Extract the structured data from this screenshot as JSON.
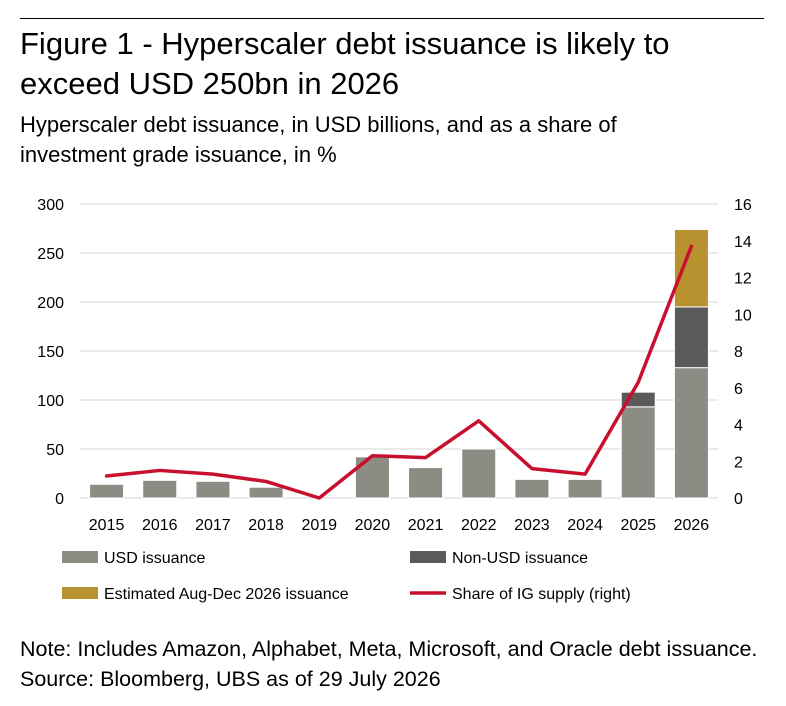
{
  "title": "Figure 1 - Hyperscaler debt issuance is likely to exceed USD 250bn in 2026",
  "subtitle": "Hyperscaler debt issuance, in USD billions, and as a share of investment grade issuance, in %",
  "note": "Note: Includes Amazon, Alphabet, Meta, Microsoft, and Oracle debt issuance. Source: Bloomberg, UBS as of 29 July 2026",
  "chart_data": {
    "type": "bar",
    "stacked": true,
    "categories": [
      "2015",
      "2016",
      "2017",
      "2018",
      "2019",
      "2020",
      "2021",
      "2022",
      "2023",
      "2024",
      "2025",
      "2026"
    ],
    "series": [
      {
        "name": "USD issuance",
        "kind": "bar",
        "axis": "left",
        "color": "#8c8c84",
        "values": [
          14,
          18,
          17,
          11,
          0,
          42,
          31,
          50,
          19,
          19,
          93,
          133
        ]
      },
      {
        "name": "Non-USD issuance",
        "kind": "bar",
        "axis": "left",
        "color": "#5a5a5a",
        "values": [
          0,
          0,
          0,
          0,
          0,
          0,
          0,
          0,
          0,
          0,
          15,
          62
        ]
      },
      {
        "name": "Estimated Aug-Dec 2026 issuance",
        "kind": "bar",
        "axis": "left",
        "color": "#b8922e",
        "values": [
          0,
          0,
          0,
          0,
          0,
          0,
          0,
          0,
          0,
          0,
          0,
          79
        ]
      },
      {
        "name": "Share of IG supply (right)",
        "kind": "line",
        "axis": "right",
        "color": "#c8102e",
        "values": [
          1.2,
          1.5,
          1.3,
          0.9,
          0.0,
          2.3,
          2.2,
          4.2,
          1.6,
          1.3,
          6.3,
          13.7
        ]
      }
    ],
    "ylim": [
      0,
      300
    ],
    "yticks": [
      "0",
      "50",
      "100",
      "150",
      "200",
      "250",
      "300"
    ],
    "y2lim": [
      0,
      16
    ],
    "y2ticks": [
      "0",
      "2",
      "4",
      "6",
      "8",
      "10",
      "12",
      "14",
      "16"
    ],
    "grid": "horizontal",
    "legend_placement": "bottom"
  }
}
